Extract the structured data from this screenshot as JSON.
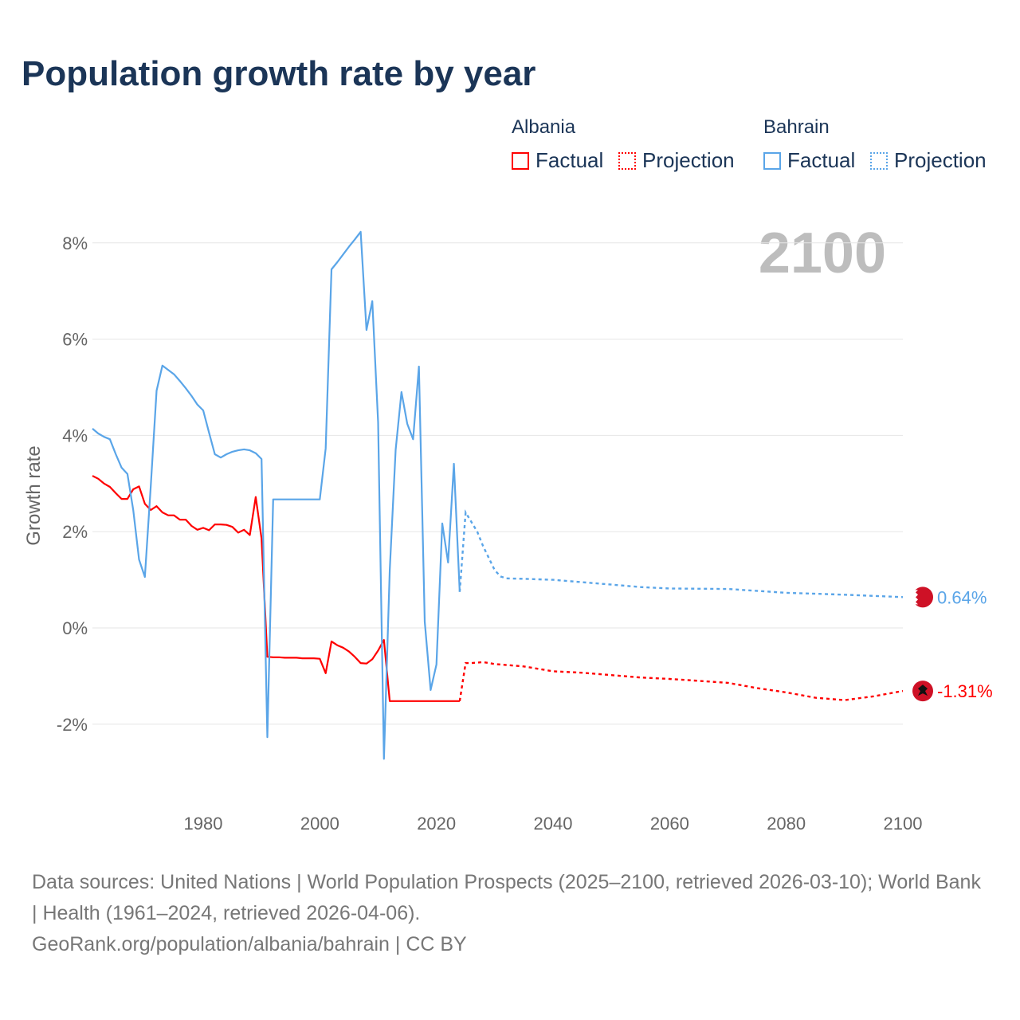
{
  "title": "Population growth rate by year",
  "legend": {
    "groups": [
      {
        "name": "Albania",
        "color": "#ff0000",
        "factual": "Factual",
        "projection": "Projection"
      },
      {
        "name": "Bahrain",
        "color": "#5aa5e8",
        "factual": "Factual",
        "projection": "Projection"
      }
    ]
  },
  "year_badge": "2100",
  "footer": {
    "sources": "Data sources: United Nations | World Population Prospects (2025–2100, retrieved 2026-03-10); World Bank | Health (1961–2024, retrieved 2026-04-06).",
    "credit": "GeoRank.org/population/albania/bahrain | CC BY"
  },
  "chart_data": {
    "type": "line",
    "title": "Population growth rate by year",
    "xlabel": "",
    "ylabel": "Growth rate",
    "xlim": [
      1961,
      2100
    ],
    "ylim": [
      -3.5,
      8.5
    ],
    "xticks": [
      1980,
      2000,
      2020,
      2040,
      2060,
      2080,
      2100
    ],
    "xtick_labels": [
      "1980",
      "2000",
      "2020",
      "2040",
      "2060",
      "2080",
      "2100"
    ],
    "yticks": [
      -2,
      0,
      2,
      4,
      6,
      8
    ],
    "ytick_labels": [
      "-2%",
      "0%",
      "2%",
      "4%",
      "6%",
      "8%"
    ],
    "grid": true,
    "legend_position": "top-right",
    "series": [
      {
        "name": "Albania",
        "color": "#ff0000",
        "end_label": "-1.31%",
        "factual": {
          "x": [
            1961,
            1962,
            1963,
            1964,
            1965,
            1966,
            1967,
            1968,
            1969,
            1970,
            1971,
            1972,
            1973,
            1974,
            1975,
            1976,
            1977,
            1978,
            1979,
            1980,
            1981,
            1982,
            1983,
            1984,
            1985,
            1986,
            1987,
            1988,
            1989,
            1990,
            1991,
            1992,
            1993,
            1994,
            1995,
            1996,
            1997,
            1998,
            1999,
            2000,
            2001,
            2002,
            2003,
            2004,
            2005,
            2006,
            2007,
            2008,
            2009,
            2010,
            2011,
            2012,
            2013,
            2014,
            2015,
            2016,
            2017,
            2018,
            2019,
            2020,
            2021,
            2022,
            2023,
            2024
          ],
          "y": [
            3.16,
            3.1,
            3.0,
            2.93,
            2.8,
            2.68,
            2.68,
            2.88,
            2.94,
            2.58,
            2.45,
            2.53,
            2.4,
            2.34,
            2.34,
            2.25,
            2.25,
            2.12,
            2.04,
            2.08,
            2.03,
            2.15,
            2.15,
            2.14,
            2.1,
            1.98,
            2.04,
            1.93,
            2.72,
            1.86,
            -0.6,
            -0.61,
            -0.61,
            -0.62,
            -0.62,
            -0.62,
            -0.63,
            -0.63,
            -0.63,
            -0.64,
            -0.94,
            -0.28,
            -0.36,
            -0.41,
            -0.49,
            -0.6,
            -0.73,
            -0.74,
            -0.65,
            -0.47,
            -0.25,
            -1.52,
            -1.52,
            -1.52,
            -1.52,
            -1.52,
            -1.52,
            -1.52,
            -1.52,
            -1.52,
            -1.52,
            -1.52,
            -1.52,
            -1.52
          ]
        },
        "projection": {
          "x": [
            2024,
            2025,
            2026,
            2028,
            2030,
            2035,
            2040,
            2045,
            2050,
            2055,
            2060,
            2065,
            2070,
            2075,
            2080,
            2085,
            2090,
            2095,
            2100
          ],
          "y": [
            -1.52,
            -0.73,
            -0.73,
            -0.71,
            -0.75,
            -0.8,
            -0.9,
            -0.93,
            -0.98,
            -1.03,
            -1.06,
            -1.1,
            -1.14,
            -1.25,
            -1.34,
            -1.45,
            -1.5,
            -1.42,
            -1.31
          ]
        }
      },
      {
        "name": "Bahrain",
        "color": "#5aa5e8",
        "end_label": "0.64%",
        "factual": {
          "x": [
            1961,
            1962,
            1963,
            1964,
            1965,
            1966,
            1967,
            1968,
            1969,
            1970,
            1971,
            1972,
            1973,
            1974,
            1975,
            1976,
            1977,
            1978,
            1979,
            1980,
            1981,
            1982,
            1983,
            1984,
            1985,
            1986,
            1987,
            1988,
            1989,
            1990,
            1991,
            1992,
            1993,
            1994,
            1995,
            1996,
            1997,
            1998,
            1999,
            2000,
            2001,
            2002,
            2003,
            2004,
            2005,
            2006,
            2007,
            2008,
            2009,
            2010,
            2011,
            2012,
            2013,
            2014,
            2015,
            2016,
            2017,
            2018,
            2019,
            2020,
            2021,
            2022,
            2023,
            2024
          ],
          "y": [
            4.14,
            4.04,
            3.97,
            3.92,
            3.61,
            3.33,
            3.2,
            2.45,
            1.42,
            1.06,
            2.95,
            4.93,
            5.45,
            5.36,
            5.27,
            5.13,
            4.98,
            4.82,
            4.64,
            4.52,
            4.06,
            3.61,
            3.54,
            3.61,
            3.66,
            3.69,
            3.71,
            3.69,
            3.63,
            3.51,
            -2.27,
            2.67,
            2.67,
            2.67,
            2.67,
            2.67,
            2.67,
            2.67,
            2.67,
            2.67,
            3.73,
            7.45,
            7.6,
            7.76,
            7.92,
            8.07,
            8.23,
            6.19,
            6.79,
            4.27,
            -2.72,
            1.2,
            3.7,
            4.9,
            4.24,
            3.92,
            5.43,
            0.13,
            -1.29,
            -0.76,
            2.17,
            1.36,
            3.41,
            0.75
          ]
        },
        "projection": {
          "x": [
            2024,
            2025,
            2026,
            2027,
            2028,
            2029,
            2030,
            2031,
            2032,
            2035,
            2040,
            2045,
            2050,
            2055,
            2060,
            2070,
            2080,
            2090,
            2100
          ],
          "y": [
            0.75,
            2.4,
            2.2,
            2.0,
            1.7,
            1.45,
            1.2,
            1.07,
            1.03,
            1.02,
            1.0,
            0.95,
            0.9,
            0.85,
            0.82,
            0.81,
            0.73,
            0.69,
            0.64
          ]
        }
      }
    ]
  }
}
